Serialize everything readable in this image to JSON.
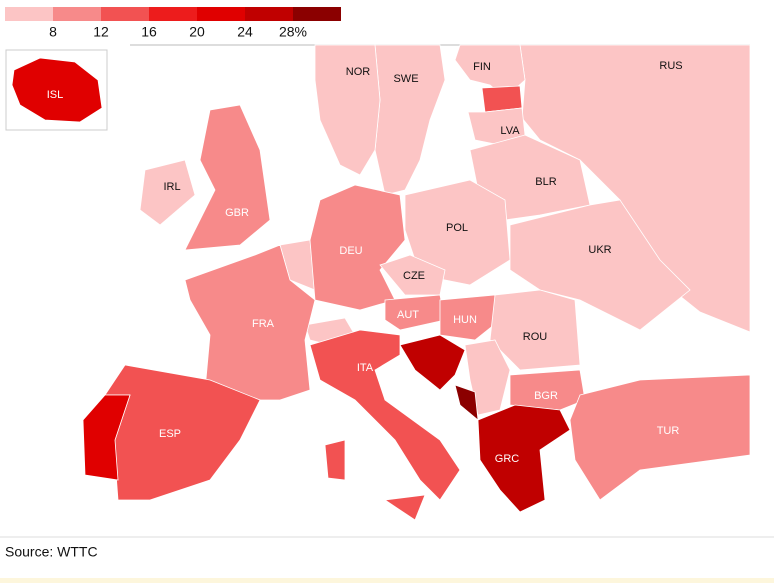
{
  "legend": {
    "colors": [
      "#fcc5c5",
      "#f78a8a",
      "#f25252",
      "#ed1c1c",
      "#e00000",
      "#c00000",
      "#8b0000"
    ],
    "ticks": [
      8,
      12,
      16,
      20,
      24,
      {
        "value": 28,
        "label": "28%"
      }
    ]
  },
  "countries": [
    {
      "label": "ISL",
      "color": "#e00000"
    },
    {
      "label": "NOR",
      "color": "#fcc5c5"
    },
    {
      "label": "SWE",
      "color": "#fcc5c5"
    },
    {
      "label": "FIN",
      "color": "#fcc5c5"
    },
    {
      "label": "RUS",
      "color": "#fcc5c5"
    },
    {
      "label": "LVA",
      "color": "#fcc5c5"
    },
    {
      "label": "BLR",
      "color": "#fcc5c5"
    },
    {
      "label": "IRL",
      "color": "#fcc5c5"
    },
    {
      "label": "GBR",
      "color": "#f78a8a"
    },
    {
      "label": "DEU",
      "color": "#f78a8a"
    },
    {
      "label": "POL",
      "color": "#fcc5c5"
    },
    {
      "label": "UKR",
      "color": "#fcc5c5"
    },
    {
      "label": "CZE",
      "color": "#fcc5c5"
    },
    {
      "label": "FRA",
      "color": "#f78a8a"
    },
    {
      "label": "AUT",
      "color": "#f78a8a"
    },
    {
      "label": "HUN",
      "color": "#f78a8a"
    },
    {
      "label": "ROU",
      "color": "#fcc5c5"
    },
    {
      "label": "ITA",
      "color": "#f25252"
    },
    {
      "label": "BGR",
      "color": "#f78a8a"
    },
    {
      "label": "ESP",
      "color": "#f25252"
    },
    {
      "label": "TUR",
      "color": "#f78a8a"
    },
    {
      "label": "GRC",
      "color": "#c00000"
    }
  ],
  "source": "Source: WTTC"
}
